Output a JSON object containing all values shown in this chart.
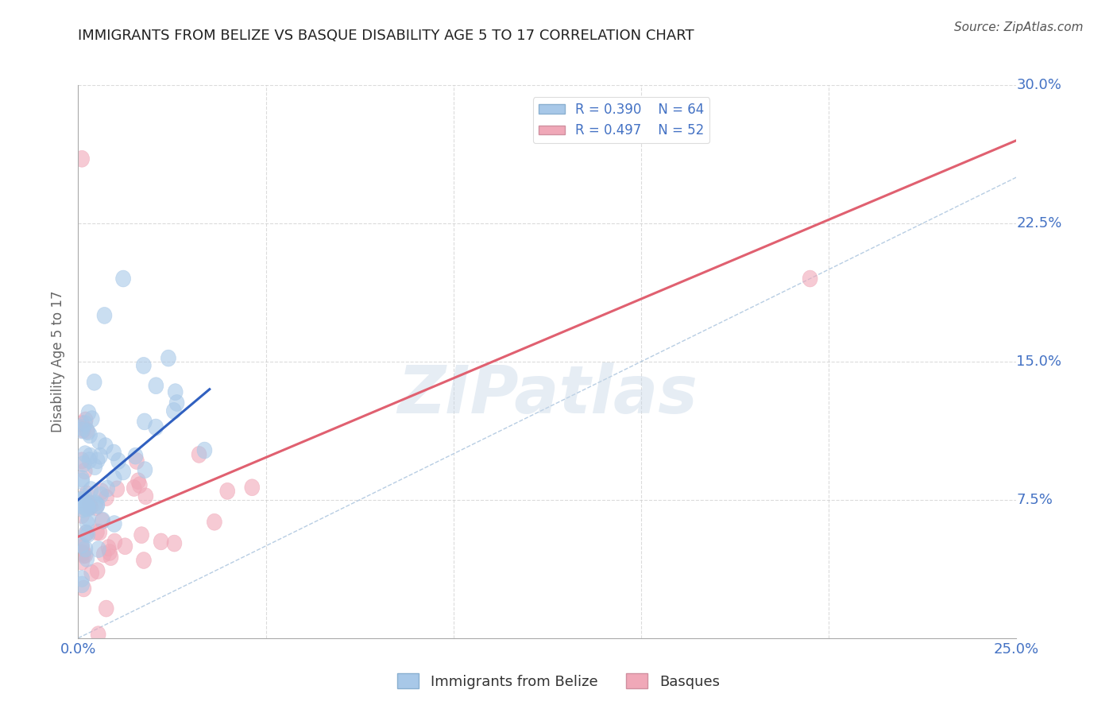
{
  "title": "IMMIGRANTS FROM BELIZE VS BASQUE DISABILITY AGE 5 TO 17 CORRELATION CHART",
  "source": "Source: ZipAtlas.com",
  "ylabel": "Disability Age 5 to 17",
  "xlim": [
    0.0,
    0.25
  ],
  "ylim": [
    0.0,
    0.3
  ],
  "xticks": [
    0.0,
    0.05,
    0.1,
    0.15,
    0.2,
    0.25
  ],
  "yticks": [
    0.0,
    0.075,
    0.15,
    0.225,
    0.3
  ],
  "xticklabels": [
    "0.0%",
    "",
    "",
    "",
    "",
    "25.0%"
  ],
  "yticklabels": [
    "",
    "7.5%",
    "15.0%",
    "22.5%",
    "30.0%"
  ],
  "R_blue": 0.39,
  "N_blue": 64,
  "R_pink": 0.497,
  "N_pink": 52,
  "blue_fill": "#a8c8e8",
  "pink_fill": "#f0a8b8",
  "blue_line_color": "#3060c0",
  "pink_line_color": "#e06070",
  "diagonal_color": "#b0c8e0",
  "background_color": "#ffffff",
  "grid_color": "#cccccc",
  "watermark": "ZIPatlas",
  "title_color": "#222222",
  "tick_color": "#4472c4",
  "ylabel_color": "#666666",
  "source_color": "#555555",
  "legend_text_color": "#4472c4",
  "bottom_legend_color": "#333333",
  "blue_trend_x": [
    0.0,
    0.035
  ],
  "blue_trend_y": [
    0.075,
    0.135
  ],
  "pink_trend_x": [
    0.0,
    0.25
  ],
  "pink_trend_y": [
    0.055,
    0.27
  ]
}
